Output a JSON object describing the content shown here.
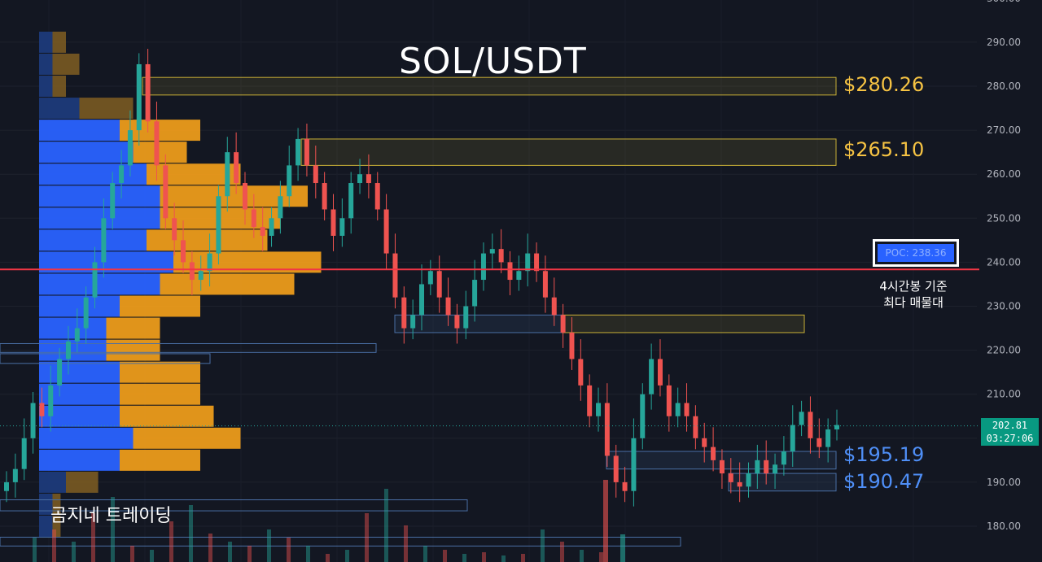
{
  "title": "SOL/USDT",
  "watermark": "곰지네 트레이딩",
  "levels": {
    "resistance": [
      "$280.26",
      "$265.10"
    ],
    "support": [
      "$195.19",
      "$190.47"
    ]
  },
  "poc": {
    "label": "POC: 238.36",
    "note_line1": "4시간봉 기준",
    "note_line2": "최다 매물대"
  },
  "last_price": {
    "price": "202.81",
    "countdown": "03:27:06"
  },
  "colors": {
    "background": "#131722",
    "up": "#26a69a",
    "down": "#ef5350",
    "poc_line": "#f23645",
    "volume_profile_blue": "#2962ff",
    "volume_profile_orange": "#f7a21b",
    "resistance_zone": "#c9b037",
    "support_zone": "#4a6fa5"
  },
  "chart_data": {
    "type": "candlestick",
    "y_axis_ticks": [
      "180.00",
      "190.00",
      "200.00",
      "210.00",
      "220.00",
      "230.00",
      "240.00",
      "250.00",
      "260.00",
      "270.00",
      "280.00",
      "290.00",
      "300.00"
    ],
    "ylim": [
      175,
      300
    ],
    "poc_price": 238.36,
    "current_price": 202.81,
    "resistance_zones": [
      [
        278,
        282
      ],
      [
        262,
        268
      ],
      [
        224,
        228
      ]
    ],
    "support_zones": [
      [
        193,
        197
      ],
      [
        188,
        192
      ]
    ],
    "close_path": [
      190,
      193,
      200,
      208,
      205,
      212,
      218,
      222,
      225,
      232,
      240,
      250,
      258,
      262,
      270,
      285,
      272,
      262,
      250,
      245,
      240,
      236,
      238,
      242,
      255,
      265,
      258,
      252,
      248,
      246,
      250,
      255,
      262,
      268,
      262,
      258,
      252,
      246,
      250,
      258,
      260,
      258,
      252,
      242,
      232,
      225,
      228,
      235,
      238,
      232,
      228,
      225,
      230,
      236,
      242,
      243,
      240,
      236,
      238,
      242,
      238,
      232,
      228,
      224,
      218,
      212,
      205,
      208,
      196,
      190,
      188,
      200,
      210,
      218,
      212,
      205,
      208,
      205,
      200,
      198,
      195,
      192,
      190,
      189,
      192,
      195,
      192,
      194,
      197,
      203,
      206,
      200,
      198,
      202,
      203
    ],
    "volume_profile": [
      {
        "price": 290,
        "buy": 0.05,
        "sell": 0.05
      },
      {
        "price": 285,
        "buy": 0.05,
        "sell": 0.1
      },
      {
        "price": 280,
        "buy": 0.05,
        "sell": 0.05
      },
      {
        "price": 275,
        "buy": 0.15,
        "sell": 0.2
      },
      {
        "price": 270,
        "buy": 0.3,
        "sell": 0.3
      },
      {
        "price": 265,
        "buy": 0.35,
        "sell": 0.2
      },
      {
        "price": 260,
        "buy": 0.4,
        "sell": 0.35
      },
      {
        "price": 255,
        "buy": 0.45,
        "sell": 0.55
      },
      {
        "price": 250,
        "buy": 0.45,
        "sell": 0.45
      },
      {
        "price": 245,
        "buy": 0.4,
        "sell": 0.45
      },
      {
        "price": 240,
        "buy": 0.5,
        "sell": 0.55
      },
      {
        "price": 235,
        "buy": 0.45,
        "sell": 0.5
      },
      {
        "price": 230,
        "buy": 0.3,
        "sell": 0.3
      },
      {
        "price": 225,
        "buy": 0.25,
        "sell": 0.2
      },
      {
        "price": 220,
        "buy": 0.25,
        "sell": 0.2
      },
      {
        "price": 215,
        "buy": 0.3,
        "sell": 0.3
      },
      {
        "price": 210,
        "buy": 0.3,
        "sell": 0.3
      },
      {
        "price": 205,
        "buy": 0.3,
        "sell": 0.35
      },
      {
        "price": 200,
        "buy": 0.35,
        "sell": 0.4
      },
      {
        "price": 195,
        "buy": 0.3,
        "sell": 0.3
      },
      {
        "price": 190,
        "buy": 0.1,
        "sell": 0.12
      },
      {
        "price": 185,
        "buy": 0.05,
        "sell": 0.03
      },
      {
        "price": 180,
        "buy": 0.05,
        "sell": 0.03
      }
    ]
  }
}
